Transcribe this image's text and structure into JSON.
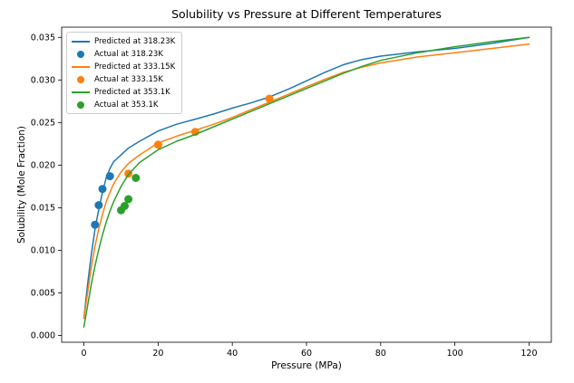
{
  "chart_data": {
    "type": "line",
    "title": "Solubility vs Pressure at Different Temperatures",
    "xlabel": "Pressure (MPa)",
    "ylabel": "Solubility (Mole Fraction)",
    "xlim": [
      -6,
      126
    ],
    "ylim": [
      -0.0008,
      0.0362
    ],
    "xticks": [
      0,
      20,
      40,
      60,
      80,
      100,
      120
    ],
    "yticks": [
      0.0,
      0.005,
      0.01,
      0.015,
      0.02,
      0.025,
      0.03,
      0.035
    ],
    "grid": false,
    "legend_position": "upper left",
    "colors": {
      "t318": "#1f77b4",
      "t333": "#ff7f0e",
      "t353": "#2ca02c"
    },
    "series": [
      {
        "name": "Predicted at 318.23K",
        "kind": "line",
        "color": "#1f77b4",
        "points": [
          [
            0,
            0.002
          ],
          [
            1,
            0.006
          ],
          [
            2,
            0.0095
          ],
          [
            3,
            0.0125
          ],
          [
            4,
            0.0148
          ],
          [
            5,
            0.0168
          ],
          [
            6,
            0.0185
          ],
          [
            7,
            0.0196
          ],
          [
            8,
            0.0204
          ],
          [
            10,
            0.0212
          ],
          [
            12,
            0.022
          ],
          [
            15,
            0.0228
          ],
          [
            20,
            0.024
          ],
          [
            25,
            0.0248
          ],
          [
            30,
            0.0254
          ],
          [
            35,
            0.026
          ],
          [
            40,
            0.0267
          ],
          [
            45,
            0.0273
          ],
          [
            50,
            0.028
          ],
          [
            55,
            0.0289
          ],
          [
            60,
            0.0299
          ],
          [
            65,
            0.0309
          ],
          [
            70,
            0.0318
          ],
          [
            75,
            0.0324
          ],
          [
            80,
            0.0328
          ],
          [
            90,
            0.0333
          ],
          [
            100,
            0.0337
          ],
          [
            110,
            0.0343
          ],
          [
            120,
            0.035
          ]
        ]
      },
      {
        "name": "Actual at 318.23K",
        "kind": "scatter",
        "color": "#1f77b4",
        "points": [
          [
            3,
            0.013
          ],
          [
            4,
            0.0153
          ],
          [
            5,
            0.0172
          ],
          [
            7,
            0.0187
          ]
        ]
      },
      {
        "name": "Predicted at 333.15K",
        "kind": "line",
        "color": "#ff7f0e",
        "points": [
          [
            0,
            0.002
          ],
          [
            1,
            0.005
          ],
          [
            2,
            0.008
          ],
          [
            3,
            0.0105
          ],
          [
            4,
            0.0125
          ],
          [
            5,
            0.0142
          ],
          [
            6,
            0.0157
          ],
          [
            7,
            0.0168
          ],
          [
            8,
            0.0178
          ],
          [
            10,
            0.0192
          ],
          [
            12,
            0.0202
          ],
          [
            15,
            0.0212
          ],
          [
            20,
            0.0226
          ],
          [
            25,
            0.0234
          ],
          [
            30,
            0.0241
          ],
          [
            35,
            0.0248
          ],
          [
            40,
            0.0256
          ],
          [
            45,
            0.0265
          ],
          [
            50,
            0.0274
          ],
          [
            55,
            0.0283
          ],
          [
            60,
            0.0292
          ],
          [
            65,
            0.0301
          ],
          [
            70,
            0.0309
          ],
          [
            75,
            0.0315
          ],
          [
            80,
            0.032
          ],
          [
            90,
            0.0327
          ],
          [
            100,
            0.0332
          ],
          [
            110,
            0.0337
          ],
          [
            120,
            0.0342
          ]
        ]
      },
      {
        "name": "Actual at 333.15K",
        "kind": "scatter",
        "color": "#ff7f0e",
        "points": [
          [
            12,
            0.019
          ],
          [
            20,
            0.0224
          ],
          [
            30,
            0.0239
          ],
          [
            50,
            0.0278
          ]
        ]
      },
      {
        "name": "Predicted at 353.1K",
        "kind": "line",
        "color": "#2ca02c",
        "points": [
          [
            0,
            0.001
          ],
          [
            1,
            0.0035
          ],
          [
            2,
            0.006
          ],
          [
            3,
            0.0082
          ],
          [
            4,
            0.0101
          ],
          [
            5,
            0.0118
          ],
          [
            6,
            0.0133
          ],
          [
            7,
            0.0146
          ],
          [
            8,
            0.0157
          ],
          [
            10,
            0.0175
          ],
          [
            12,
            0.0189
          ],
          [
            15,
            0.0203
          ],
          [
            20,
            0.0218
          ],
          [
            25,
            0.0228
          ],
          [
            30,
            0.0236
          ],
          [
            35,
            0.0245
          ],
          [
            40,
            0.0254
          ],
          [
            45,
            0.0263
          ],
          [
            50,
            0.0272
          ],
          [
            55,
            0.0281
          ],
          [
            60,
            0.029
          ],
          [
            65,
            0.0299
          ],
          [
            70,
            0.0308
          ],
          [
            75,
            0.0316
          ],
          [
            80,
            0.0323
          ],
          [
            90,
            0.0332
          ],
          [
            100,
            0.0339
          ],
          [
            110,
            0.0345
          ],
          [
            120,
            0.035
          ]
        ]
      },
      {
        "name": "Actual at 353.1K",
        "kind": "scatter",
        "color": "#2ca02c",
        "points": [
          [
            10,
            0.0147
          ],
          [
            11,
            0.0152
          ],
          [
            12,
            0.016
          ],
          [
            14,
            0.0185
          ]
        ]
      }
    ]
  }
}
